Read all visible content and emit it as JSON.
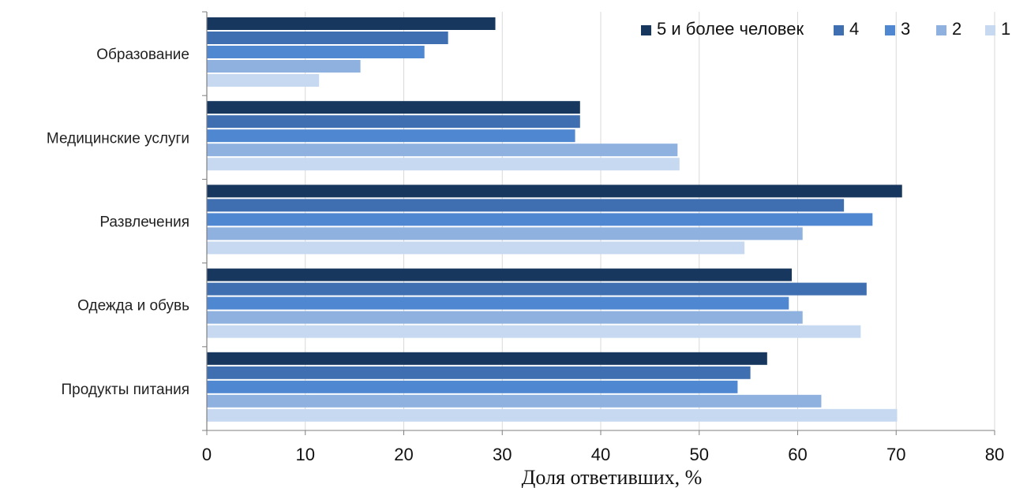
{
  "chart_data": {
    "type": "bar",
    "orientation": "horizontal",
    "title": "",
    "xlabel": "Доля ответивших, %",
    "ylabel": "",
    "xlim": [
      0,
      80
    ],
    "x_ticks": [
      0,
      10,
      20,
      30,
      40,
      50,
      60,
      70,
      80
    ],
    "grid": true,
    "legend_position": "top-right",
    "categories": [
      "Образование",
      "Медицинские услуги",
      "Развлечения",
      "Одежда и обувь",
      "Продукты питания"
    ],
    "series": [
      {
        "name": "5 и более человек",
        "color": "#17375e",
        "values": [
          29.3,
          37.9,
          70.6,
          59.4,
          56.9
        ]
      },
      {
        "name": "4",
        "color": "#3f6fb0",
        "values": [
          24.5,
          37.9,
          64.7,
          67.0,
          55.2
        ]
      },
      {
        "name": "3",
        "color": "#4f87d1",
        "values": [
          22.1,
          37.4,
          67.6,
          59.1,
          53.9
        ]
      },
      {
        "name": "2",
        "color": "#8fb1e0",
        "values": [
          15.6,
          47.8,
          60.5,
          60.5,
          62.4
        ]
      },
      {
        "name": "1",
        "color": "#c6d9f1",
        "values": [
          11.4,
          48.0,
          54.6,
          66.4,
          70.1
        ]
      }
    ]
  }
}
